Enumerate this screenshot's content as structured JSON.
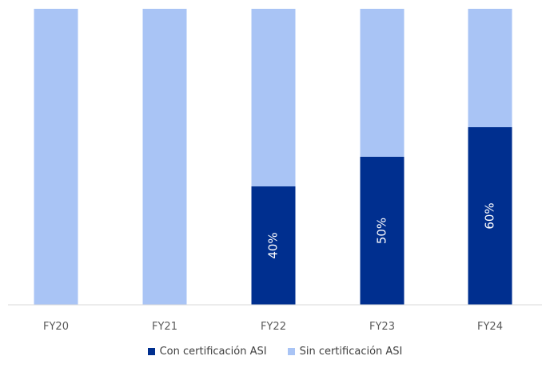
{
  "chart_data": {
    "type": "bar",
    "stacked": true,
    "percent": true,
    "categories": [
      "FY20",
      "FY21",
      "FY22",
      "FY23",
      "FY24"
    ],
    "series": [
      {
        "name": "Con certificación ASI",
        "color": "#002F8F",
        "values": [
          0,
          0,
          40,
          50,
          60
        ],
        "labels": [
          "",
          "",
          "40%",
          "50%",
          "60%"
        ]
      },
      {
        "name": "Sin certificación ASI",
        "color": "#A9C4F5",
        "values": [
          100,
          100,
          60,
          50,
          40
        ]
      }
    ],
    "ylim": [
      0,
      100
    ],
    "grid": false,
    "legend_position": "bottom"
  }
}
